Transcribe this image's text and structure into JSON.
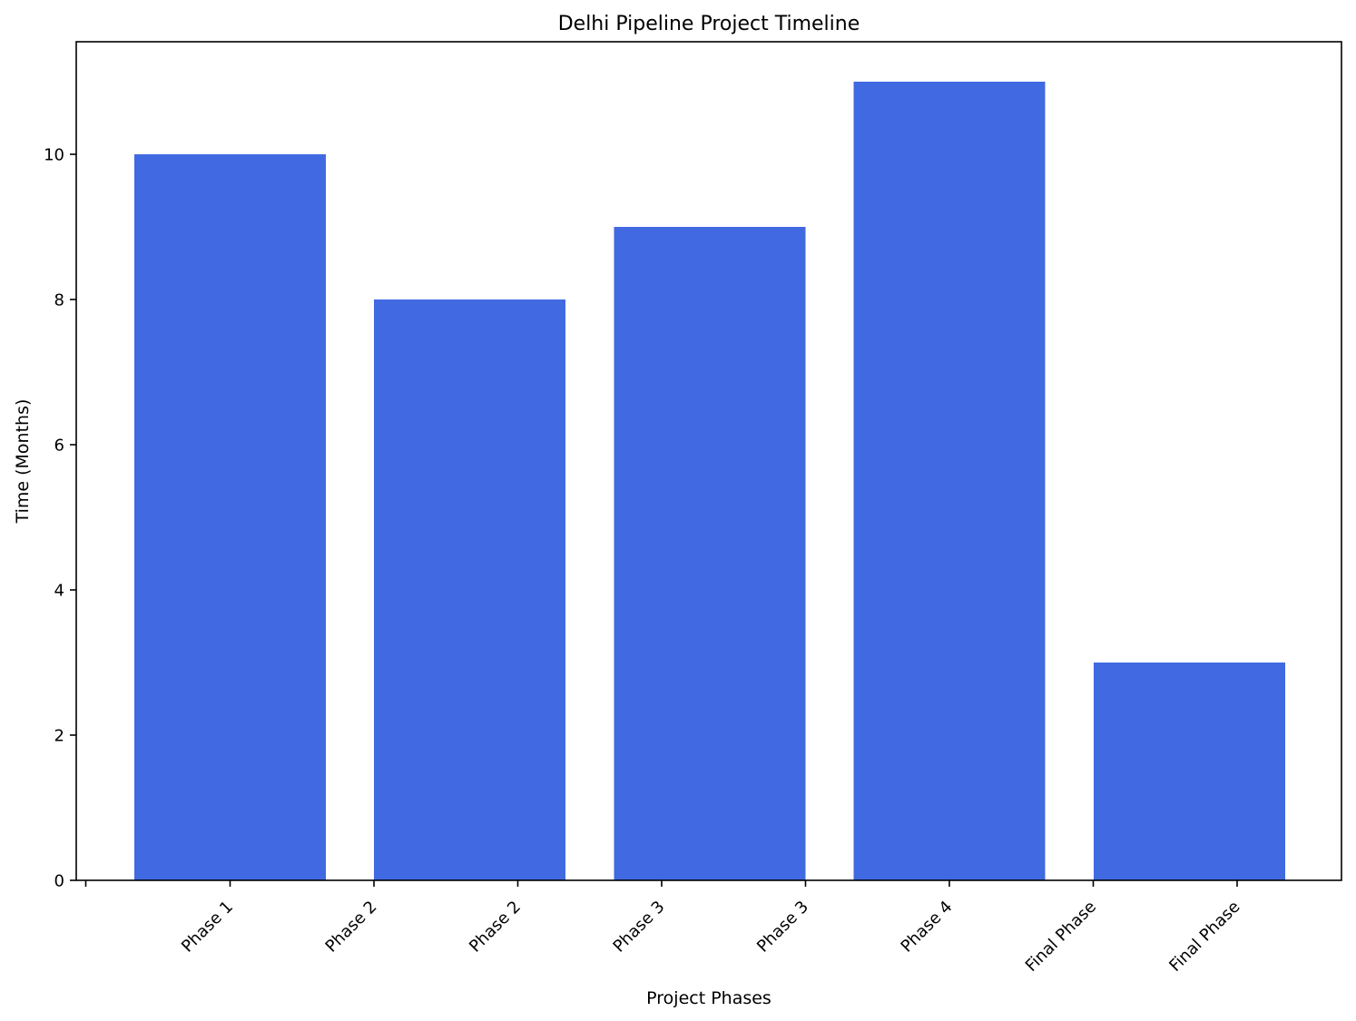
{
  "chart_data": {
    "type": "bar",
    "title": "Delhi Pipeline Project Timeline",
    "xlabel": "Project Phases",
    "ylabel": "Time (Months)",
    "bars": [
      10,
      8,
      9,
      11,
      3
    ],
    "xtick_labels": [
      "",
      "Phase 1",
      "Phase 2",
      "Phase 2",
      "Phase 3",
      "Phase 3",
      "Phase 4",
      "Final Phase",
      "Final Phase"
    ],
    "ylim": [
      0,
      11.55
    ],
    "yticks": [
      0,
      2,
      4,
      6,
      8,
      10
    ],
    "bar_color": "#4169E1",
    "grid": false,
    "legend": "none"
  }
}
